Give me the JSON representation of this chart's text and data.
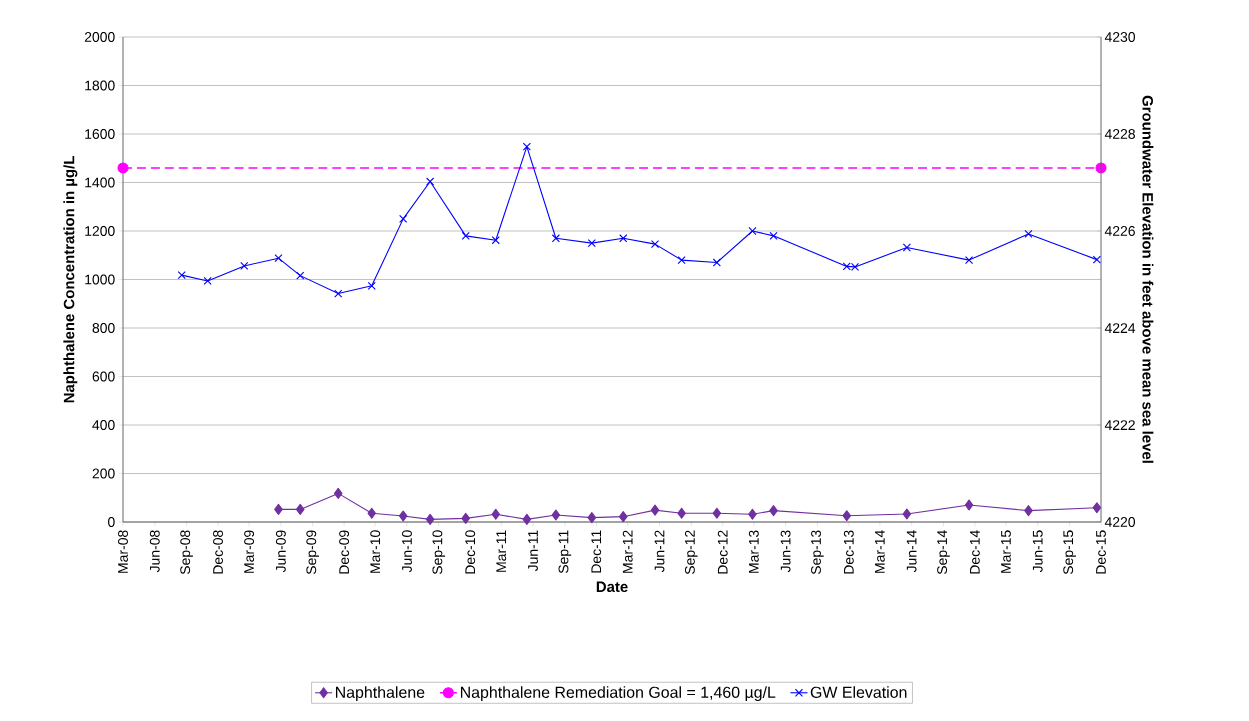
{
  "chart_data": {
    "type": "line",
    "xlabel": "Date",
    "ylabel": "Naphthalene Concentration in µg/L",
    "y2label": "Groundwater Elevation in feet above mean sea level",
    "xlim": [
      "2008-03-01",
      "2015-12-01"
    ],
    "xticks": [
      {
        "value": "2008-03-01",
        "label": "Mar-08"
      },
      {
        "value": "2008-06-01",
        "label": "Jun-08"
      },
      {
        "value": "2008-09-01",
        "label": "Sep-08"
      },
      {
        "value": "2008-12-01",
        "label": "Dec-08"
      },
      {
        "value": "2009-03-01",
        "label": "Mar-09"
      },
      {
        "value": "2009-06-01",
        "label": "Jun-09"
      },
      {
        "value": "2009-09-01",
        "label": "Sep-09"
      },
      {
        "value": "2009-12-01",
        "label": "Dec-09"
      },
      {
        "value": "2010-03-01",
        "label": "Mar-10"
      },
      {
        "value": "2010-06-01",
        "label": "Jun-10"
      },
      {
        "value": "2010-09-01",
        "label": "Sep-10"
      },
      {
        "value": "2010-12-01",
        "label": "Dec-10"
      },
      {
        "value": "2011-03-01",
        "label": "Mar-11"
      },
      {
        "value": "2011-06-01",
        "label": "Jun-11"
      },
      {
        "value": "2011-09-01",
        "label": "Sep-11"
      },
      {
        "value": "2011-12-01",
        "label": "Dec-11"
      },
      {
        "value": "2012-03-01",
        "label": "Mar-12"
      },
      {
        "value": "2012-06-01",
        "label": "Jun-12"
      },
      {
        "value": "2012-09-01",
        "label": "Sep-12"
      },
      {
        "value": "2012-12-01",
        "label": "Dec-12"
      },
      {
        "value": "2013-03-01",
        "label": "Mar-13"
      },
      {
        "value": "2013-06-01",
        "label": "Jun-13"
      },
      {
        "value": "2013-09-01",
        "label": "Sep-13"
      },
      {
        "value": "2013-12-01",
        "label": "Dec-13"
      },
      {
        "value": "2014-03-01",
        "label": "Mar-14"
      },
      {
        "value": "2014-06-01",
        "label": "Jun-14"
      },
      {
        "value": "2014-09-01",
        "label": "Sep-14"
      },
      {
        "value": "2014-12-01",
        "label": "Dec-14"
      },
      {
        "value": "2015-03-01",
        "label": "Mar-15"
      },
      {
        "value": "2015-06-01",
        "label": "Jun-15"
      },
      {
        "value": "2015-09-01",
        "label": "Sep-15"
      },
      {
        "value": "2015-12-01",
        "label": "Dec-15"
      }
    ],
    "ylim": [
      0,
      2000
    ],
    "yticks": [
      0,
      200,
      400,
      600,
      800,
      1000,
      1200,
      1400,
      1600,
      1800,
      2000
    ],
    "y2lim": [
      4220,
      4230
    ],
    "y2ticks": [
      4220,
      4222,
      4224,
      4226,
      4228,
      4230
    ],
    "grid": "y",
    "legend": "bottom",
    "series": [
      {
        "name": "Naphthalene",
        "color": "#7030a0",
        "marker": "diamond",
        "line_style": "solid",
        "x": [
          "2009-05-25",
          "2009-07-27",
          "2009-11-14",
          "2010-02-19",
          "2010-05-21",
          "2010-08-07",
          "2010-11-18",
          "2011-02-13",
          "2011-05-14",
          "2011-08-06",
          "2011-11-18",
          "2012-02-17",
          "2012-05-19",
          "2012-08-04",
          "2012-11-14",
          "2013-02-25",
          "2013-04-27",
          "2013-11-25",
          "2014-05-18",
          "2014-11-14",
          "2015-05-05",
          "2015-11-19"
        ],
        "values": [
          52,
          52,
          118,
          36,
          25,
          11,
          15,
          32,
          11,
          29,
          18,
          22,
          49,
          36,
          36,
          32,
          47,
          26,
          33,
          70,
          47,
          59
        ]
      },
      {
        "name": "Naphthalene Remediation Goal = 1,460 µg/L",
        "color": "#ff00ff",
        "marker": "circle",
        "line_style": "dashed",
        "x": [
          "2008-03-01",
          "2015-12-01"
        ],
        "values": [
          1460,
          1460
        ]
      },
      {
        "name": "GW Elevation",
        "color": "#0000ff",
        "marker": "cross",
        "line_style": "solid",
        "axis": "y2",
        "x": [
          "2008-08-18",
          "2008-11-01",
          "2009-02-15",
          "2009-05-25",
          "2009-07-27",
          "2009-11-14",
          "2010-02-19",
          "2010-05-21",
          "2010-08-07",
          "2010-11-18",
          "2011-02-13",
          "2011-05-14",
          "2011-08-06",
          "2011-11-18",
          "2012-02-17",
          "2012-05-19",
          "2012-08-04",
          "2012-11-14",
          "2013-02-25",
          "2013-04-27",
          "2013-11-25",
          "2013-12-19",
          "2014-05-18",
          "2014-11-14",
          "2015-05-05",
          "2015-11-19"
        ],
        "values": [
          4225.09,
          4224.97,
          4225.28,
          4225.44,
          4225.08,
          4224.71,
          4224.87,
          4226.25,
          4227.02,
          4225.9,
          4225.81,
          4227.74,
          4225.85,
          4225.75,
          4225.85,
          4225.73,
          4225.4,
          4225.35,
          4226.0,
          4225.9,
          4225.27,
          4225.26,
          4225.66,
          4225.4,
          4225.94,
          4225.41
        ]
      }
    ]
  }
}
